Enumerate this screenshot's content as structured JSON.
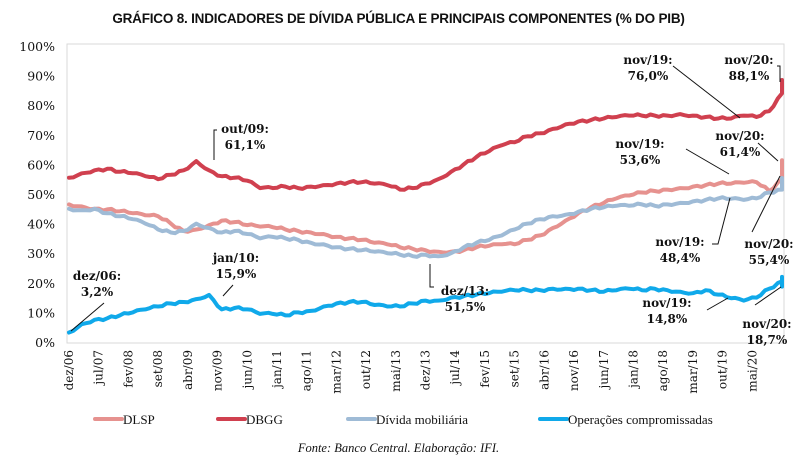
{
  "chart_data": {
    "type": "line",
    "title": "GRÁFICO 8. INDICADORES DE DÍVIDA PÚBLICA E PRINCIPAIS COMPONENTES (% DO PIB)",
    "xlabel": "",
    "ylabel": "",
    "ylim": [
      0,
      100
    ],
    "yticks": [
      "0%",
      "10%",
      "20%",
      "30%",
      "40%",
      "50%",
      "60%",
      "70%",
      "80%",
      "90%",
      "100%"
    ],
    "x_start": "dez/06",
    "x_end": "nov/20",
    "n_months": 169,
    "xtick_labels": [
      "dez/06",
      "jul/07",
      "fev/08",
      "set/08",
      "abr/09",
      "nov/09",
      "jun/10",
      "jan/11",
      "ago/11",
      "mar/12",
      "out/12",
      "mai/13",
      "dez/13",
      "jul/14",
      "fev/15",
      "set/15",
      "abr/16",
      "nov/16",
      "jun/17",
      "jan/18",
      "ago/18",
      "mar/19",
      "out/19",
      "mai/20"
    ],
    "xtick_every_months": 7,
    "sample_every_months": 3,
    "series": [
      {
        "name": "DLSP",
        "color": "#e6928f",
        "values": [
          46.5,
          45.8,
          45.0,
          44.8,
          44.2,
          43.5,
          42.8,
          42.5,
          40.0,
          37.5,
          38.0,
          39.5,
          41.0,
          40.5,
          39.5,
          39.0,
          38.8,
          38.0,
          37.5,
          37.0,
          36.5,
          35.5,
          35.0,
          34.5,
          33.5,
          33.0,
          32.0,
          31.5,
          31.0,
          30.5,
          30.5,
          31.0,
          32.0,
          32.5,
          33.0,
          33.0,
          34.5,
          36.0,
          38.5,
          41.0,
          43.5,
          45.5,
          47.0,
          48.5,
          49.5,
          50.5,
          51.0,
          51.5,
          52.0,
          52.5,
          53.0,
          53.5,
          53.5,
          53.8,
          54.0,
          51.0,
          55.0,
          59.0,
          61.4
        ]
      },
      {
        "name": "DBGG",
        "color": "#d0404f",
        "values": [
          55.5,
          57.0,
          58.0,
          58.5,
          57.5,
          57.0,
          56.0,
          55.0,
          56.5,
          58.0,
          61.1,
          58.0,
          56.0,
          55.5,
          54.5,
          52.0,
          52.0,
          52.5,
          52.0,
          52.5,
          53.0,
          53.5,
          54.0,
          54.0,
          53.5,
          53.0,
          51.5,
          52.0,
          53.5,
          55.0,
          57.5,
          60.0,
          62.5,
          64.5,
          66.5,
          67.5,
          69.5,
          70.5,
          72.0,
          73.5,
          74.5,
          75.0,
          75.5,
          76.0,
          76.5,
          76.5,
          76.5,
          76.5,
          77.0,
          76.5,
          76.0,
          75.5,
          75.5,
          76.5,
          76.0,
          78.0,
          84.0,
          88.5,
          88.1
        ]
      },
      {
        "name": "Dívida mobiliária",
        "color": "#9fbbd6",
        "values": [
          45.0,
          44.5,
          45.0,
          43.5,
          42.5,
          41.5,
          40.0,
          38.0,
          37.0,
          37.5,
          40.0,
          38.5,
          37.0,
          37.5,
          36.5,
          35.0,
          35.5,
          35.0,
          34.5,
          33.5,
          33.0,
          32.0,
          31.5,
          31.0,
          30.5,
          30.0,
          29.5,
          29.0,
          29.5,
          29.0,
          30.0,
          32.0,
          33.5,
          34.5,
          36.0,
          38.0,
          40.0,
          41.5,
          42.5,
          43.0,
          44.0,
          45.0,
          45.5,
          46.0,
          46.0,
          46.5,
          46.0,
          46.5,
          47.0,
          47.5,
          48.0,
          48.5,
          48.4,
          48.0,
          48.5,
          50.5,
          51.5,
          53.5,
          55.4
        ]
      },
      {
        "name": "Operações compromissadas",
        "color": "#10a9ea",
        "values": [
          3.2,
          6.0,
          7.5,
          8.0,
          9.0,
          10.0,
          11.0,
          12.0,
          13.0,
          13.5,
          14.5,
          15.9,
          11.0,
          11.5,
          11.0,
          9.5,
          9.5,
          9.0,
          10.0,
          10.5,
          12.0,
          13.0,
          13.5,
          13.5,
          12.5,
          12.0,
          12.0,
          13.0,
          14.0,
          14.0,
          15.0,
          15.5,
          16.0,
          16.5,
          17.0,
          17.5,
          17.5,
          17.5,
          18.0,
          18.0,
          18.0,
          17.5,
          17.0,
          17.5,
          18.0,
          17.5,
          18.0,
          17.5,
          17.0,
          16.5,
          17.5,
          16.0,
          14.8,
          14.0,
          15.0,
          18.0,
          20.5,
          22.0,
          18.7
        ]
      }
    ],
    "annotations": [
      {
        "series": "DBGG",
        "date": "out/09",
        "value": 61.1,
        "label_line1": "out/09:",
        "label_line2": "61,1%"
      },
      {
        "series": "DBGG",
        "date": "dez/13",
        "value": 51.5,
        "label_line1": "dez/13:",
        "label_line2": "51,5%"
      },
      {
        "series": "DBGG",
        "date": "nov/19",
        "value": 76.0,
        "label_line1": "nov/19:",
        "label_line2": "76,0%"
      },
      {
        "series": "DBGG",
        "date": "nov/20",
        "value": 88.1,
        "label_line1": "nov/20:",
        "label_line2": "88,1%"
      },
      {
        "series": "DLSP",
        "date": "nov/19",
        "value": 53.6,
        "label_line1": "nov/19:",
        "label_line2": "53,6%"
      },
      {
        "series": "DLSP",
        "date": "nov/20",
        "value": 61.4,
        "label_line1": "nov/20:",
        "label_line2": "61,4%"
      },
      {
        "series": "Dívida mobiliária",
        "date": "nov/19",
        "value": 48.4,
        "label_line1": "nov/19:",
        "label_line2": "48,4%"
      },
      {
        "series": "Dívida mobiliária",
        "date": "nov/20",
        "value": 55.4,
        "label_line1": "nov/20:",
        "label_line2": "55,4%"
      },
      {
        "series": "Operações compromissadas",
        "date": "dez/06",
        "value": 3.2,
        "label_line1": "dez/06:",
        "label_line2": "3,2%"
      },
      {
        "series": "Operações compromissadas",
        "date": "jan/10",
        "value": 15.9,
        "label_line1": "jan/10:",
        "label_line2": "15,9%"
      },
      {
        "series": "Operações compromissadas",
        "date": "nov/19",
        "value": 14.8,
        "label_line1": "nov/19:",
        "label_line2": "14,8%"
      },
      {
        "series": "Operações compromissadas",
        "date": "nov/20",
        "value": 18.7,
        "label_line1": "nov/20:",
        "label_line2": "18,7%"
      }
    ],
    "legend": [
      "DLSP",
      "DBGG",
      "Dívida mobiliária",
      "Operações compromissadas"
    ],
    "legend_position": "bottom",
    "grid": false,
    "source": "Fonte: Banco Central. Elaboração: IFI."
  }
}
